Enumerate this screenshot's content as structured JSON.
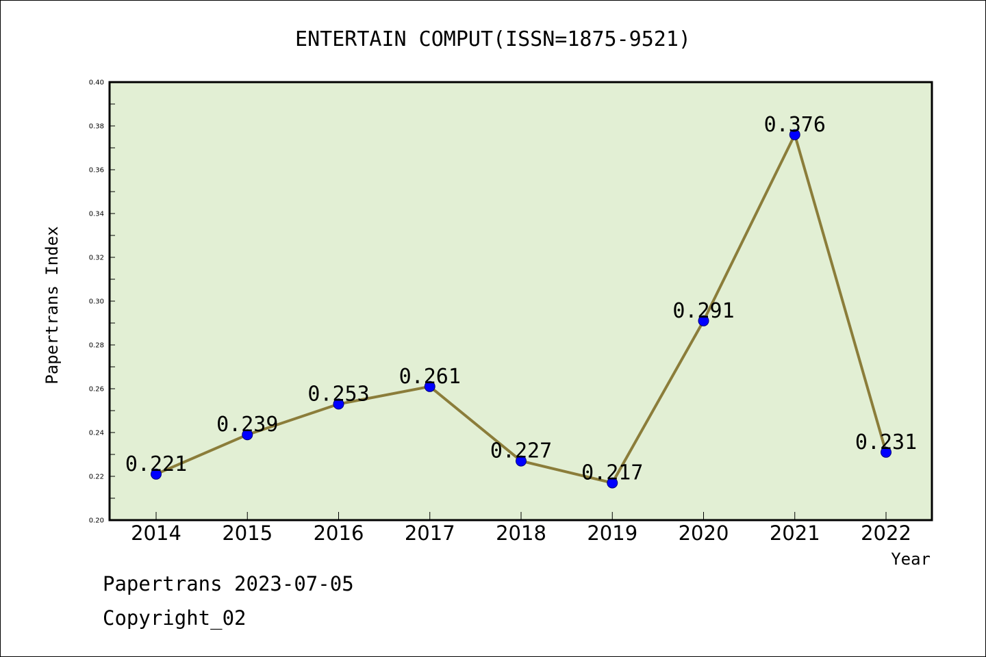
{
  "chart_data": {
    "type": "line",
    "title": "ENTERTAIN COMPUT(ISSN=1875-9521)",
    "xlabel": "Year",
    "ylabel": "Papertrans Index",
    "x": [
      "2014",
      "2015",
      "2016",
      "2017",
      "2018",
      "2019",
      "2020",
      "2021",
      "2022"
    ],
    "values": [
      0.221,
      0.239,
      0.253,
      0.261,
      0.227,
      0.217,
      0.291,
      0.376,
      0.231
    ],
    "data_labels": [
      "0.221",
      "0.239",
      "0.253",
      "0.261",
      "0.227",
      "0.217",
      "0.291",
      "0.376",
      "0.231"
    ],
    "ylim": [
      0.2,
      0.4
    ],
    "yticks": [
      "0.20",
      "0.22",
      "0.24",
      "0.26",
      "0.28",
      "0.30",
      "0.32",
      "0.34",
      "0.36",
      "0.38",
      "0.40"
    ],
    "grid": false,
    "colors": {
      "plot_background": "#e2efd4",
      "line": "#8b7d3a",
      "marker": "#0000ff"
    }
  },
  "footer": {
    "line1": "Papertrans 2023-07-05",
    "line2": "Copyright_02"
  }
}
